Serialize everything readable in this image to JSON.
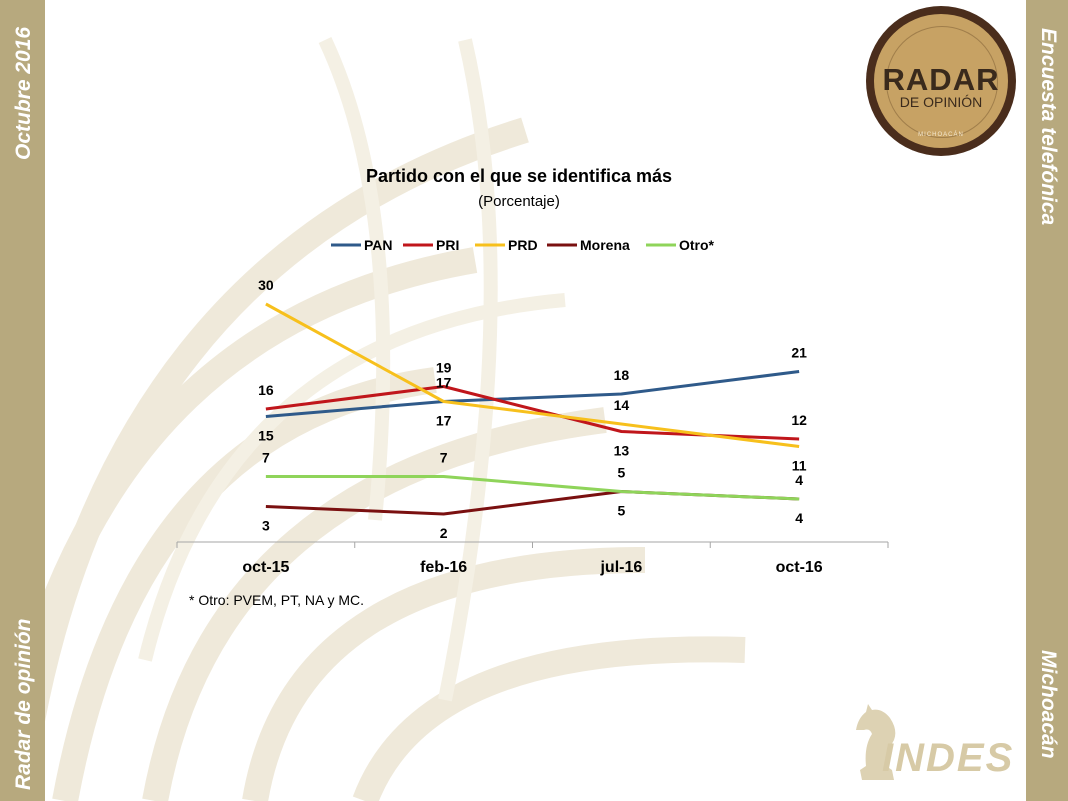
{
  "sidebar_left": {
    "top": "Octubre 2016",
    "bottom": "Radar de opinión"
  },
  "sidebar_right": {
    "top": "Encuesta telefónica",
    "bottom": "Michoacán"
  },
  "logo": {
    "title": "RADAR",
    "subtitle": "DE OPINIÓN",
    "region": "MICHOACÁN"
  },
  "brand": {
    "name": "INDES"
  },
  "footnote": "* Otro: PVEM, PT, NA y MC.",
  "chart_data": {
    "type": "line",
    "title": "Partido con el que se identifica más",
    "subtitle": "(Porcentaje)",
    "categories": [
      "oct-15",
      "feb-16",
      "jul-16",
      "oct-16"
    ],
    "legend_position": "top",
    "grid": false,
    "ylim": [
      0,
      35
    ],
    "series": [
      {
        "name": "PAN",
        "values": [
          15,
          17,
          18,
          21
        ],
        "color": "#2f5a8a",
        "label_offsets": [
          "below",
          "above",
          "above",
          "above"
        ]
      },
      {
        "name": "PRI",
        "values": [
          16,
          19,
          13,
          12
        ],
        "color": "#c0161b",
        "label_offsets": [
          "above",
          "above",
          "below",
          "above"
        ]
      },
      {
        "name": "PRD",
        "values": [
          30,
          17,
          14,
          11
        ],
        "color": "#f7c01c",
        "label_offsets": [
          "above",
          "below",
          "above",
          "below"
        ]
      },
      {
        "name": "Morena",
        "values": [
          3,
          2,
          5,
          4
        ],
        "color": "#7a1010",
        "label_offsets": [
          "below",
          "below",
          "below",
          "below"
        ]
      },
      {
        "name": "Otro*",
        "values": [
          7,
          7,
          5,
          4
        ],
        "color": "#8fd45a",
        "label_offsets": [
          "above",
          "above",
          "above",
          "above"
        ]
      }
    ]
  }
}
